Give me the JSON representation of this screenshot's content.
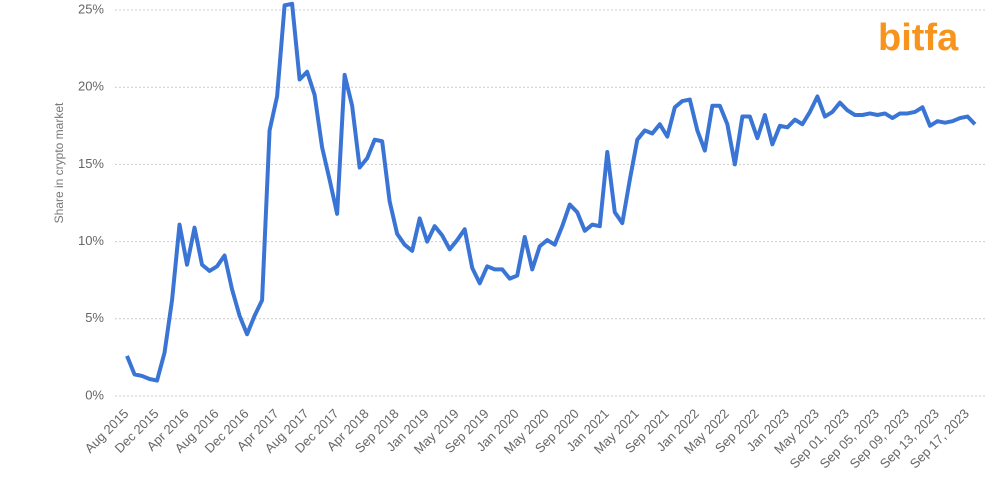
{
  "chart_data": {
    "type": "line",
    "logo": "bitfa",
    "y_label": "Share in crypto market",
    "categories": [
      "Aug 2015",
      null,
      null,
      null,
      "Dec 2015",
      null,
      null,
      null,
      "Apr 2016",
      null,
      null,
      null,
      "Aug 2016",
      null,
      null,
      null,
      "Dec 2016",
      null,
      null,
      null,
      "Apr 2017",
      null,
      null,
      null,
      "Aug 2017",
      null,
      null,
      null,
      "Dec 2017",
      null,
      null,
      null,
      "Apr 2018",
      null,
      null,
      null,
      "Sep 2018",
      null,
      null,
      null,
      "Jan 2019",
      null,
      null,
      null,
      "May 2019",
      null,
      null,
      null,
      "Sep 2019",
      null,
      null,
      null,
      "Jan 2020",
      null,
      null,
      null,
      "May 2020",
      null,
      null,
      null,
      "Sep 2020",
      null,
      null,
      null,
      "Jan 2021",
      null,
      null,
      null,
      "May 2021",
      null,
      null,
      null,
      "Sep 2021",
      null,
      null,
      null,
      "Jan 2022",
      null,
      null,
      null,
      "May 2022",
      null,
      null,
      null,
      "Sep 2022",
      null,
      null,
      null,
      "Jan 2023",
      null,
      null,
      null,
      "May 2023",
      null,
      null,
      null,
      "Sep 01, 2023",
      null,
      null,
      null,
      "Sep 05, 2023",
      null,
      null,
      null,
      "Sep 09, 2023",
      null,
      null,
      null,
      "Sep 13, 2023",
      null,
      null,
      null,
      "Sep 17, 2023",
      null
    ],
    "series": [
      {
        "name": "Share",
        "color": "#3a75d6",
        "values": [
          2.6,
          1.4,
          1.3,
          1.1,
          1.0,
          2.8,
          6.2,
          11.1,
          8.5,
          10.9,
          8.5,
          8.1,
          8.4,
          9.1,
          6.9,
          5.2,
          4.0,
          5.2,
          6.2,
          17.2,
          19.4,
          25.3,
          25.4,
          20.5,
          21.0,
          19.5,
          16.1,
          14.0,
          11.8,
          20.8,
          18.8,
          14.8,
          15.4,
          16.6,
          16.5,
          12.6,
          10.5,
          9.8,
          9.4,
          11.5,
          10.0,
          11.0,
          10.4,
          9.5,
          10.1,
          10.8,
          8.3,
          7.3,
          8.4,
          8.2,
          8.2,
          7.6,
          7.8,
          10.3,
          8.2,
          9.7,
          10.1,
          9.8,
          11.0,
          12.4,
          11.9,
          10.7,
          11.1,
          11.0,
          15.8,
          11.9,
          11.2,
          14.0,
          16.6,
          17.2,
          17.0,
          17.6,
          16.8,
          18.7,
          19.1,
          19.2,
          17.2,
          15.9,
          18.8,
          18.8,
          17.6,
          15.0,
          18.1,
          18.1,
          16.7,
          18.2,
          16.3,
          17.5,
          17.4,
          17.9,
          17.6,
          18.4,
          19.4,
          18.1,
          18.4,
          19.0,
          18.5,
          18.2,
          18.2,
          18.3,
          18.2,
          18.3,
          18.0,
          18.3,
          18.3,
          18.4,
          18.7,
          17.5,
          17.8,
          17.7,
          17.8,
          18.0,
          18.1,
          17.6
        ]
      }
    ],
    "ylim": [
      0,
      25
    ],
    "yticks": [
      {
        "value": 0,
        "label": "0%"
      },
      {
        "value": 5,
        "label": "5%"
      },
      {
        "value": 10,
        "label": "10%"
      },
      {
        "value": 15,
        "label": "15%"
      },
      {
        "value": 20,
        "label": "20%"
      },
      {
        "value": 25,
        "label": "25%"
      }
    ],
    "grid": true
  }
}
